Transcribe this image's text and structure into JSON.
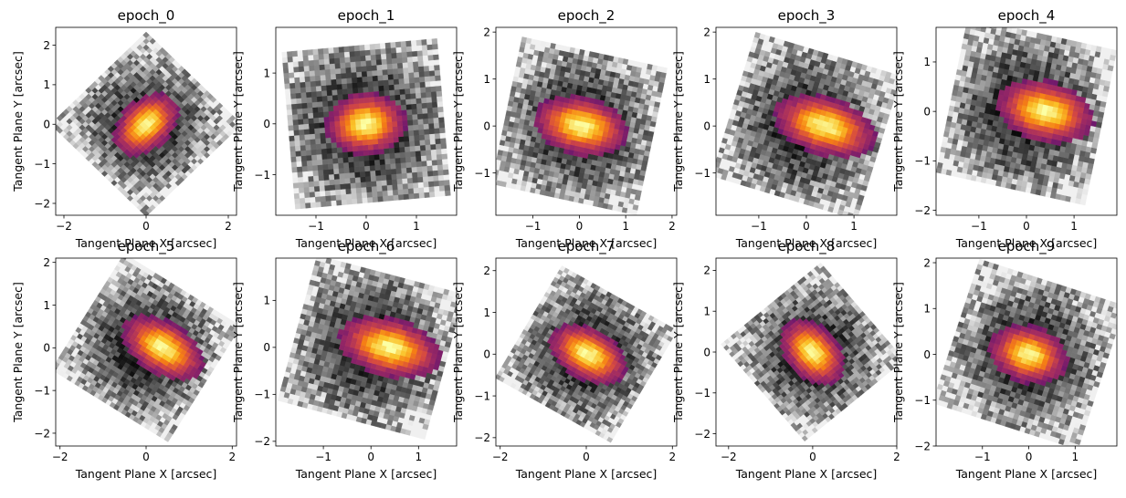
{
  "figure": {
    "colormap": "inferno-on-greyscale-background",
    "background_color": "#ffffff",
    "xlabel": "Tangent Plane X [arcsec]",
    "ylabel": "Tangent Plane Y [arcsec]"
  },
  "chart_data": [
    {
      "type": "heatmap",
      "title": "epoch_0",
      "xlabel": "Tangent Plane X [arcsec]",
      "ylabel": "Tangent Plane Y [arcsec]",
      "xlim": [
        -2.2,
        2.2
      ],
      "ylim": [
        -2.3,
        2.45
      ],
      "xticks": [
        -2,
        0,
        2
      ],
      "yticks": [
        -2,
        -1,
        0,
        1,
        2
      ],
      "rotation_deg": 45,
      "half_size": 1.65,
      "peak": [
        0,
        0
      ],
      "elongation": [
        1.5,
        1.0
      ],
      "grid": false
    },
    {
      "type": "heatmap",
      "title": "epoch_1",
      "xlabel": "Tangent Plane X [arcsec]",
      "ylabel": "Tangent Plane Y [arcsec]",
      "xlim": [
        -1.8,
        1.8
      ],
      "ylim": [
        -1.8,
        1.9
      ],
      "xticks": [
        -1,
        0,
        1
      ],
      "yticks": [
        -1,
        0,
        1
      ],
      "rotation_deg": 5,
      "half_size": 1.55,
      "peak": [
        0,
        0
      ],
      "elongation": [
        1.3,
        1.0
      ],
      "grid": false
    },
    {
      "type": "heatmap",
      "title": "epoch_2",
      "xlabel": "Tangent Plane X [arcsec]",
      "ylabel": "Tangent Plane Y [arcsec]",
      "xlim": [
        -1.8,
        2.1
      ],
      "ylim": [
        -1.9,
        2.1
      ],
      "xticks": [
        -1,
        0,
        1,
        2
      ],
      "yticks": [
        -1,
        0,
        1,
        2
      ],
      "rotation_deg": -12,
      "half_size": 1.6,
      "peak": [
        0.05,
        0
      ],
      "elongation": [
        1.7,
        1.0
      ],
      "grid": false
    },
    {
      "type": "heatmap",
      "title": "epoch_3",
      "xlabel": "Tangent Plane X [arcsec]",
      "ylabel": "Tangent Plane Y [arcsec]",
      "xlim": [
        -1.9,
        1.9
      ],
      "ylim": [
        -1.9,
        2.1
      ],
      "xticks": [
        -1,
        0,
        1
      ],
      "yticks": [
        -1,
        0,
        1,
        2
      ],
      "rotation_deg": -17,
      "half_size": 1.6,
      "peak": [
        0.4,
        0
      ],
      "elongation": [
        1.8,
        1.0
      ],
      "grid": false
    },
    {
      "type": "heatmap",
      "title": "epoch_4",
      "xlabel": "Tangent Plane X [arcsec]",
      "ylabel": "Tangent Plane Y [arcsec]",
      "xlim": [
        -1.9,
        1.9
      ],
      "ylim": [
        -2.1,
        1.7
      ],
      "xticks": [
        -1,
        0,
        1
      ],
      "yticks": [
        -2,
        -1,
        0,
        1
      ],
      "rotation_deg": -12,
      "half_size": 1.6,
      "peak": [
        0.4,
        0
      ],
      "elongation": [
        1.7,
        1.0
      ],
      "grid": false
    },
    {
      "type": "heatmap",
      "title": "epoch_5",
      "xlabel": "Tangent Plane X [arcsec]",
      "ylabel": "Tangent Plane Y [arcsec]",
      "xlim": [
        -2.1,
        2.1
      ],
      "ylim": [
        -2.3,
        2.1
      ],
      "xticks": [
        -2,
        0,
        2
      ],
      "yticks": [
        -2,
        -1,
        0,
        1,
        2
      ],
      "rotation_deg": -32,
      "half_size": 1.6,
      "peak": [
        0.4,
        0
      ],
      "elongation": [
        1.7,
        1.0
      ],
      "grid": false
    },
    {
      "type": "heatmap",
      "title": "epoch_6",
      "xlabel": "Tangent Plane X [arcsec]",
      "ylabel": "Tangent Plane Y [arcsec]",
      "xlim": [
        -2.0,
        1.8
      ],
      "ylim": [
        -2.1,
        1.9
      ],
      "xticks": [
        -1,
        0,
        1
      ],
      "yticks": [
        -2,
        -1,
        0,
        1
      ],
      "rotation_deg": -15,
      "half_size": 1.6,
      "peak": [
        0.4,
        0
      ],
      "elongation": [
        1.8,
        1.0
      ],
      "grid": false
    },
    {
      "type": "heatmap",
      "title": "epoch_7",
      "xlabel": "Tangent Plane X [arcsec]",
      "ylabel": "Tangent Plane Y [arcsec]",
      "xlim": [
        -2.1,
        2.1
      ],
      "ylim": [
        -2.2,
        2.3
      ],
      "xticks": [
        -2,
        0,
        2
      ],
      "yticks": [
        -2,
        -1,
        0,
        1,
        2
      ],
      "rotation_deg": -30,
      "half_size": 1.55,
      "peak": [
        0.05,
        0
      ],
      "elongation": [
        1.6,
        1.0
      ],
      "grid": false
    },
    {
      "type": "heatmap",
      "title": "epoch_8",
      "xlabel": "Tangent Plane X [arcsec]",
      "ylabel": "Tangent Plane Y [arcsec]",
      "xlim": [
        -2.3,
        2.0
      ],
      "ylim": [
        -2.3,
        2.3
      ],
      "xticks": [
        -2,
        0,
        2
      ],
      "yticks": [
        -2,
        -1,
        0,
        1,
        2
      ],
      "rotation_deg": -50,
      "half_size": 1.55,
      "peak": [
        0,
        0
      ],
      "elongation": [
        1.5,
        1.0
      ],
      "grid": false
    },
    {
      "type": "heatmap",
      "title": "epoch_9",
      "xlabel": "Tangent Plane X [arcsec]",
      "ylabel": "Tangent Plane Y [arcsec]",
      "xlim": [
        -2.0,
        1.9
      ],
      "ylim": [
        -2.0,
        2.1
      ],
      "xticks": [
        -1,
        0,
        1
      ],
      "yticks": [
        -2,
        -1,
        0,
        1,
        2
      ],
      "rotation_deg": -18,
      "half_size": 1.65,
      "peak": [
        0,
        0
      ],
      "elongation": [
        1.4,
        1.0
      ],
      "grid": false
    }
  ]
}
